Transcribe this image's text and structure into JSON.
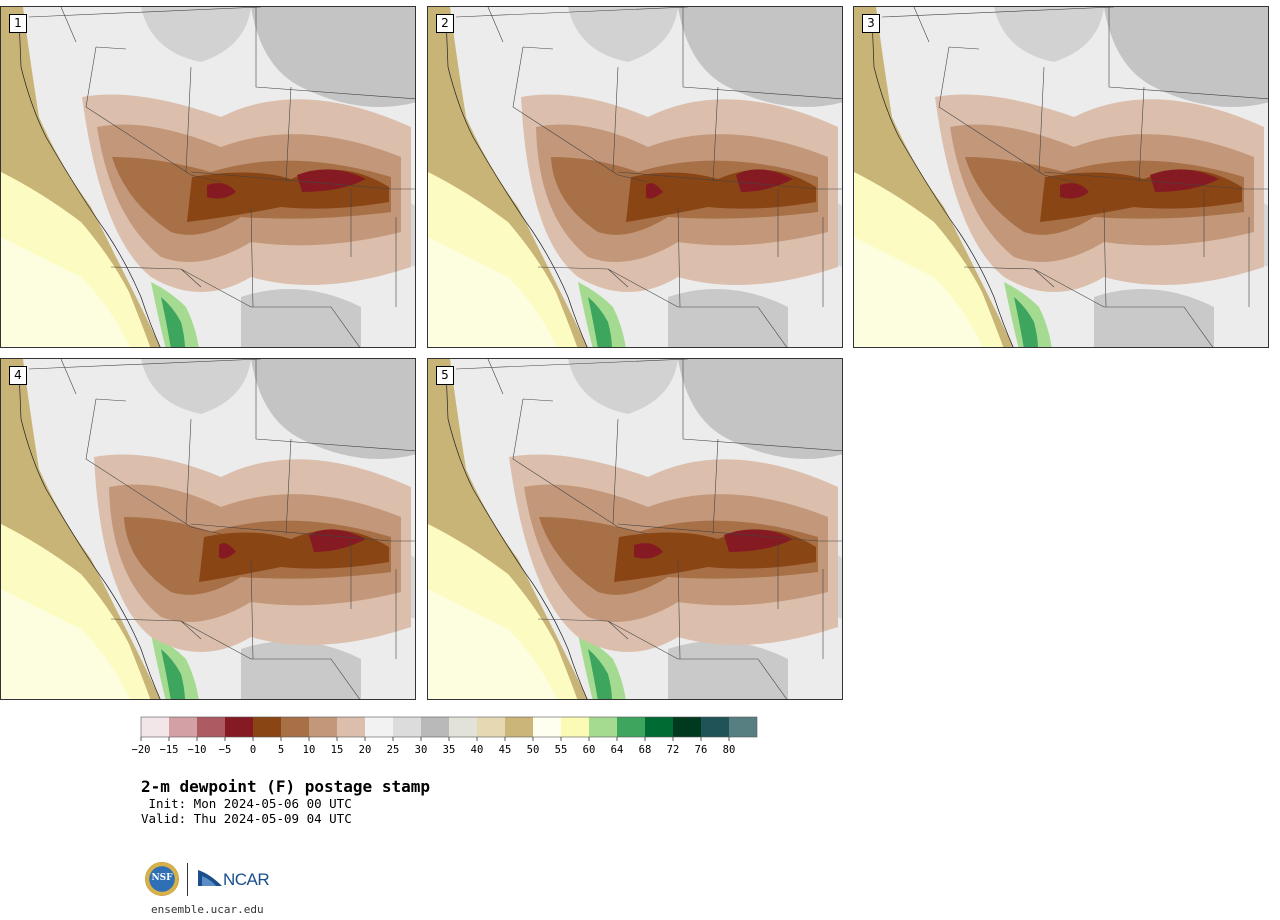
{
  "panels": [
    {
      "label": "1",
      "variant": 0
    },
    {
      "label": "2",
      "variant": 1
    },
    {
      "label": "3",
      "variant": 2
    },
    {
      "label": "4",
      "variant": 3
    },
    {
      "label": "5",
      "variant": 4
    }
  ],
  "colorbar": {
    "ticks": [
      "−20",
      "−15",
      "−10",
      "−5",
      "0",
      "5",
      "10",
      "15",
      "20",
      "25",
      "30",
      "35",
      "40",
      "45",
      "50",
      "55",
      "60",
      "64",
      "68",
      "72",
      "76",
      "80"
    ],
    "colors": [
      "#f3e6e8",
      "#d3a0a5",
      "#ad5a62",
      "#851a22",
      "#8a4515",
      "#a87047",
      "#c3977a",
      "#dbbfac",
      "#f2f2f2",
      "#dcdcdc",
      "#b9b9b9",
      "#e2e2d8",
      "#e6d8b2",
      "#cbb578",
      "#fffff0",
      "#fbfbb6",
      "#a5db90",
      "#3da55e",
      "#006b33",
      "#003a1e",
      "#1f5357",
      "#577f82"
    ]
  },
  "title": "2-m dewpoint (F) postage stamp",
  "init": " Init: Mon 2024-05-06 00 UTC",
  "valid": "Valid: Thu 2024-05-09 04 UTC",
  "logos": {
    "nsf": "NSF",
    "ncar": "NCAR"
  },
  "footer_url": "ensemble.ucar.edu"
}
